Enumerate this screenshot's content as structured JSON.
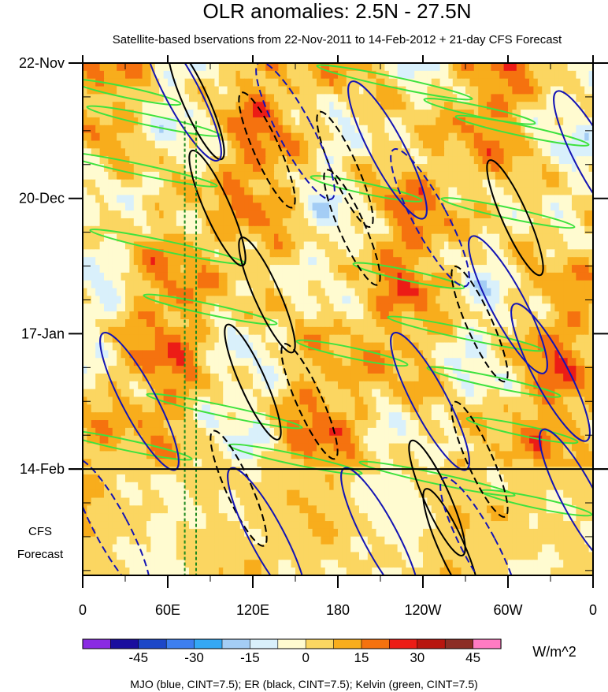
{
  "chart_data": {
    "type": "heatmap",
    "title": "OLR anomalies: 2.5N - 27.5N",
    "subtitle": "Satellite-based bservations from 22-Nov-2011 to 14-Feb-2012 + 21-day CFS Forecast",
    "x_ticks": [
      "0",
      "60E",
      "120E",
      "180",
      "120W",
      "60W",
      "0"
    ],
    "x_range_deg": [
      0,
      360
    ],
    "y_ticks": [
      "22-Nov",
      "20-Dec",
      "17-Jan",
      "14-Feb"
    ],
    "y_range_days": [
      0,
      106
    ],
    "y_tick_days": [
      0,
      28,
      56,
      84
    ],
    "observation_end_day": 84,
    "forecast_label_line1": "CFS",
    "forecast_label_line2": "Forecast",
    "reference_longitudes_deg": [
      72,
      80
    ],
    "colorbar": {
      "levels": [
        -52.5,
        -45,
        -37.5,
        -30,
        -22.5,
        -15,
        -7.5,
        0,
        7.5,
        15,
        22.5,
        30,
        37.5,
        45,
        52.5
      ],
      "tick_labels": [
        "-45",
        "-30",
        "-15",
        "0",
        "15",
        "30",
        "45"
      ],
      "colors": [
        "#8a2be2",
        "#1a0e9e",
        "#1c47c8",
        "#3d7ff0",
        "#34a8f4",
        "#a4cdf5",
        "#d9f0fb",
        "#fffbd0",
        "#fbd661",
        "#f8ad1c",
        "#f5720f",
        "#ec1c16",
        "#b8160f",
        "#8c2d25",
        "#ff7bc2"
      ],
      "units": "W/m^2"
    },
    "footer": "MJO (blue, CINT=7.5); ER (black, CINT=7.5); Kelvin (green, CINT=7.5)",
    "series": [
      {
        "name": "MJO",
        "color": "#1414b4",
        "contour_interval": 7.5
      },
      {
        "name": "ER",
        "color": "#000000",
        "contour_interval": 7.5
      },
      {
        "name": "Kelvin",
        "color": "#3ee23e",
        "contour_interval": 7.5
      }
    ]
  }
}
